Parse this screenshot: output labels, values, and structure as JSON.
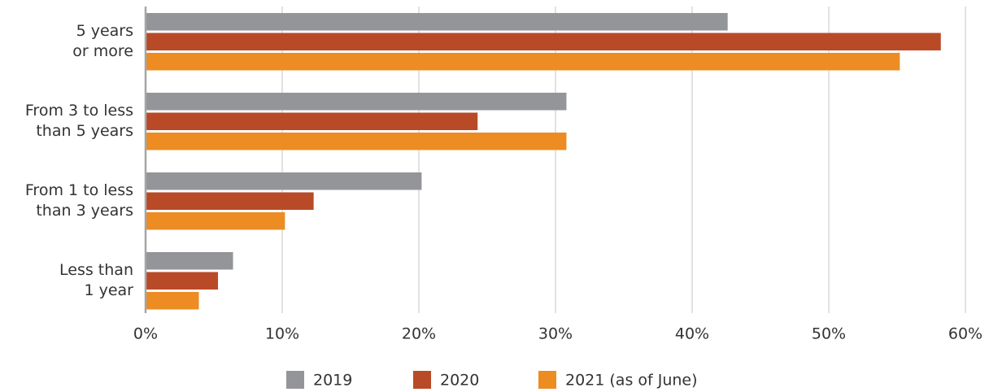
{
  "chart_data": {
    "type": "bar",
    "orientation": "horizontal",
    "categories": [
      "5 years\nor more",
      "From 3 to less\nthan 5 years",
      "From 1 to less\nthan 3 years",
      "Less than\n1 year"
    ],
    "series": [
      {
        "name": "2019",
        "color": "#939598",
        "values": [
          42.6,
          30.8,
          20.2,
          6.4
        ]
      },
      {
        "name": "2020",
        "color": "#b94a27",
        "values": [
          58.2,
          24.3,
          12.3,
          5.3
        ]
      },
      {
        "name": "2021 (as of June)",
        "color": "#ec8c23",
        "values": [
          55.2,
          30.8,
          10.2,
          3.9
        ]
      }
    ],
    "xlim": [
      0,
      60
    ],
    "xticks": [
      {
        "value": 0,
        "label": "0%"
      },
      {
        "value": 10,
        "label": "10%"
      },
      {
        "value": 20,
        "label": "20%"
      },
      {
        "value": 30,
        "label": "30%"
      },
      {
        "value": 40,
        "label": "40%"
      },
      {
        "value": 50,
        "label": "50%"
      },
      {
        "value": 60,
        "label": "60%"
      }
    ],
    "grid": true,
    "legend": "bottom"
  }
}
